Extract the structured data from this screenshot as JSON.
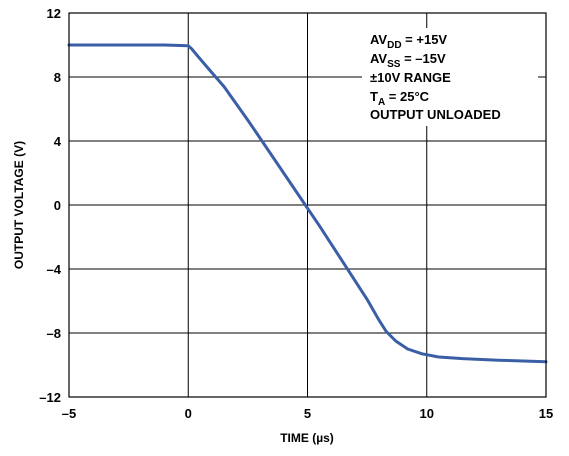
{
  "chart_data": {
    "type": "line",
    "xlabel": "TIME (µs)",
    "ylabel": "OUTPUT VOLTAGE (V)",
    "xlim": [
      -5,
      15
    ],
    "ylim": [
      -12,
      12
    ],
    "x_ticks": [
      -5,
      0,
      5,
      10,
      15
    ],
    "y_ticks": [
      12,
      8,
      4,
      0,
      -4,
      -8,
      -12
    ],
    "x_tick_labels": [
      "–5",
      "0",
      "5",
      "10",
      "15"
    ],
    "y_tick_labels": [
      "12",
      "8",
      "4",
      "0",
      "–4",
      "–8",
      "–12"
    ],
    "grid": true,
    "series_color": "#3a5fa6",
    "series": [
      {
        "x": [
          -5,
          -1,
          0,
          0.15,
          0.4,
          0.8,
          1.5,
          2.5,
          3.5,
          4.5,
          5.5,
          6.5,
          7.5,
          8.0,
          8.3,
          8.7,
          9.2,
          9.8,
          10.5,
          11.5,
          13.0,
          15.0
        ],
        "y": [
          10.0,
          10.0,
          9.95,
          9.75,
          9.3,
          8.6,
          7.4,
          5.3,
          3.1,
          0.9,
          -1.3,
          -3.6,
          -5.9,
          -7.2,
          -7.9,
          -8.5,
          -9.0,
          -9.3,
          -9.5,
          -9.6,
          -9.7,
          -9.8
        ]
      }
    ],
    "annotations": {
      "line1": {
        "main": "AV",
        "sub": "DD",
        "rest": " = +15V"
      },
      "line2": {
        "main": "AV",
        "sub": "SS",
        "rest": " = –15V"
      },
      "line3": "±10V RANGE",
      "line4": {
        "main": "T",
        "sub": "A",
        "rest": " = 25°C"
      },
      "line5": "OUTPUT UNLOADED"
    }
  }
}
